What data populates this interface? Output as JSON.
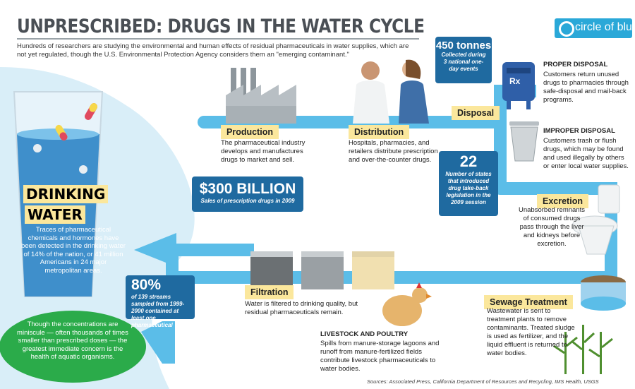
{
  "title": "UNPRESCRIBED: DRUGS IN THE WATER CYCLE",
  "logo": "circle of blue",
  "intro": "Hundreds of researchers are studying the environmental and human effects of residual pharmaceuticals in water supplies, which are not yet regulated, though the U.S. Environmental Protection Agency considers them an \"emerging contaminant.\"",
  "drinking": {
    "label1": "DRINKING",
    "label2": "WATER",
    "text": "Traces of pharmaceutical chemicals and hormones have been detected in the drinking water of 14% of the nation, or 41 million Americans in 24 major metropolitan areas."
  },
  "production": {
    "label": "Production",
    "text": "The pharmaceutical industry develops and manufactures drugs to market and sell."
  },
  "distribution": {
    "label": "Distribution",
    "text": "Hospitals, pharmacies, and retailers distribute prescription and over-the-counter drugs."
  },
  "disposal": {
    "label": "Disposal"
  },
  "sales": {
    "value": "$300 BILLION",
    "caption": "Sales of prescription drugs in 2009"
  },
  "tonnes": {
    "value": "450 tonnes",
    "caption": "Collected during 3 national one-day events"
  },
  "states": {
    "value": "22",
    "caption": "Number of states that introduced drug take-back legislation in the 2009 session"
  },
  "proper": {
    "head": "PROPER DISPOSAL",
    "text": "Customers return unused drugs to pharmacies through safe-disposal and mail-back programs.",
    "rx": "Rx"
  },
  "improper": {
    "head": "IMPROPER DISPOSAL",
    "text": "Customers trash or flush drugs, which may be found and used illegally by others or enter local water supplies."
  },
  "excretion": {
    "label": "Excretion",
    "text": "Unabsorbed remnants of consumed drugs pass through the liver and kidneys before excretion."
  },
  "sewage": {
    "label": "Sewage Treatment",
    "text": "Wastewater is sent to treatment plants to remove contaminants. Treated sludge is used as fertilizer, and the liquid effluent is returned to water bodies."
  },
  "filtration": {
    "label": "Filtration",
    "text": "Water is filtered to drinking quality, but residual pharmaceuticals remain."
  },
  "livestock": {
    "head": "LIVESTOCK AND POULTRY",
    "text": "Spills from manure-storage lagoons and runoff from manure-fertilized fields contribute livestock pharmaceuticals to water bodies."
  },
  "streams": {
    "value": "80%",
    "caption": "of 139 streams sampled from 1999-2000 contained at least one pharmaceutical"
  },
  "aquatic": {
    "text": "Though the concentrations are miniscule — often thousands of times smaller than prescribed doses — the greatest immediate concern is the health of aquatic organisms."
  },
  "sources": "Sources: Associated Press, California Department of Resources and Recycling, IMS Health, USGS",
  "colors": {
    "pipe": "#5bbde8",
    "label_bg": "#fbe79c",
    "dark_box": "#1f6aa0",
    "green": "#2bab4a",
    "logo": "#2aa8d8"
  }
}
